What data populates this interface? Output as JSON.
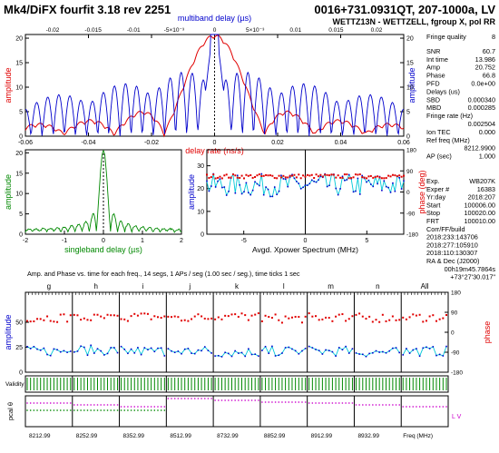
{
  "header": {
    "title": "Mk4/DiFX fourfit 3.18 rev 2251",
    "source": "0016+731.0931QT, 207-1000a, LV",
    "station_line": "WETTZ13N - WETTZELL, fgroup X, pol RR"
  },
  "right_panel": {
    "fit": [
      {
        "label": "Fringe quality",
        "value": "8"
      },
      {
        "label": "SNR",
        "value": "60.7"
      },
      {
        "label": "Int time",
        "value": "13.986"
      },
      {
        "label": "Amp",
        "value": "20.752"
      },
      {
        "label": "Phase",
        "value": "66.8"
      },
      {
        "label": "PFD",
        "value": "0.0e+00"
      },
      {
        "label": "Delays (us)",
        "value": ""
      },
      {
        "label": "SBD",
        "value": "0.000340"
      },
      {
        "label": "MBD",
        "value": "0.000285"
      },
      {
        "label": "Fringe rate (Hz)",
        "value": ""
      },
      {
        "label": "",
        "value": "0.002504"
      },
      {
        "label": "Ion TEC",
        "value": "0.000"
      },
      {
        "label": "Ref freq (MHz)",
        "value": ""
      },
      {
        "label": "",
        "value": "8212.9900"
      },
      {
        "label": "AP (sec)",
        "value": "1.000"
      }
    ],
    "info": [
      {
        "label": "Exp.",
        "value": "WB207K"
      },
      {
        "label": "Exper #",
        "value": "16383"
      },
      {
        "label": "Yr:day",
        "value": "2018:207"
      },
      {
        "label": "Start",
        "value": "100006.00"
      },
      {
        "label": "Stop",
        "value": "100020.00"
      },
      {
        "label": "FRT",
        "value": "100010.00"
      },
      {
        "label": "Corr/FF/build",
        "value": ""
      },
      {
        "label": "2018:233:143706",
        "value": ""
      },
      {
        "label": "2018:277:105910",
        "value": ""
      },
      {
        "label": "2018:110:130307",
        "value": ""
      },
      {
        "label": "RA & Dec (J2000)",
        "value": ""
      },
      {
        "label": "",
        "value": "00h19m45.7864s"
      },
      {
        "label": "",
        "value": "+73°27'30.017\""
      }
    ]
  },
  "colors": {
    "red": "#e00000",
    "blue": "#0000cc",
    "green": "#008800",
    "cyan": "#00c8d8",
    "magenta": "#cc00cc",
    "black": "#000000"
  },
  "chart_data": [
    {
      "type": "line",
      "name": "delay-resolution",
      "title": "multiband delay (µs)",
      "xlabel": "delay rate (ns/s)",
      "ylabel": "amplitude",
      "x_rate": [
        -0.06,
        -0.04,
        -0.02,
        0,
        0.02,
        0.04,
        0.06
      ],
      "x_rate_ticklabels": [
        "-0.06",
        "-0.04",
        "-0.02",
        "0",
        "0.02",
        "0.04",
        "0.06"
      ],
      "x_mbd_ticklabels": [
        "-0.02",
        "-0.015",
        "-0.01",
        "-5×10⁻³",
        "0",
        "5×10⁻³",
        "0.01",
        "0.015",
        "0.02"
      ],
      "y_left_ticks": [
        0,
        5,
        10,
        15,
        20
      ],
      "y_right_ticks": [
        0,
        5,
        10,
        15,
        20
      ],
      "ylim": [
        0,
        20.75
      ],
      "series": [
        {
          "label": "delay rate",
          "color": "#e00000",
          "peak": 20.75
        },
        {
          "label": "multiband delay",
          "color": "#0000cc",
          "peak": 20.75
        }
      ]
    },
    {
      "type": "line",
      "name": "singleband-delay",
      "xlabel": "singleband delay (µs)",
      "ylabel": "amplitude",
      "xlim": [
        -2,
        2
      ],
      "x_ticks": [
        -2,
        -1,
        0,
        1,
        2
      ],
      "y_ticks": [
        0,
        5,
        10,
        15,
        20
      ],
      "ylim": [
        0,
        20.75
      ],
      "peak": 20.75,
      "color": "#008800"
    },
    {
      "type": "line",
      "name": "xpower-spectrum",
      "xlabel": "Avgd. Xpower Spectrum (MHz)",
      "ylabel_left": "amplitude",
      "ylabel_right": "phase (deg)",
      "x_ticks": [
        -5,
        0,
        5
      ],
      "y_left_ticks": [
        0,
        10,
        20,
        30
      ],
      "y_right_ticks": [
        -180,
        -90,
        0,
        90,
        180
      ],
      "series": [
        {
          "name": "amplitude",
          "color": "#00c8d8",
          "mean": 21.5
        },
        {
          "name": "phase",
          "color": "#e00000",
          "mean": 67
        }
      ]
    },
    {
      "type": "scatter",
      "name": "per-channel",
      "caption": "Amp. and Phase vs. time for each freq., 14 segs, 1 APs / seg (1.00 sec / seg.), time ticks 1 sec",
      "channels": [
        "g",
        "h",
        "i",
        "j",
        "k",
        "l",
        "m",
        "n",
        "All"
      ],
      "freq_labels": [
        "8212.99",
        "8252.99",
        "8352.99",
        "8512.99",
        "8732.99",
        "8852.99",
        "8912.99",
        "8932.99",
        "Freq (MHz)"
      ],
      "ylabel_left": "amplitude",
      "ylabel_right": "phase",
      "y_left_ticks": [
        0,
        25,
        50
      ],
      "y_right_ticks": [
        -180,
        -90,
        0,
        90,
        180
      ],
      "validity_label": "Validity",
      "pcal_label": "pcal θ",
      "pcal_legend": "L V",
      "amp_mean": [
        21,
        22,
        21,
        21,
        20,
        21,
        21,
        20,
        21
      ],
      "phase_mean": [
        66,
        64,
        70,
        66,
        70,
        62,
        68,
        65,
        67
      ]
    }
  ]
}
